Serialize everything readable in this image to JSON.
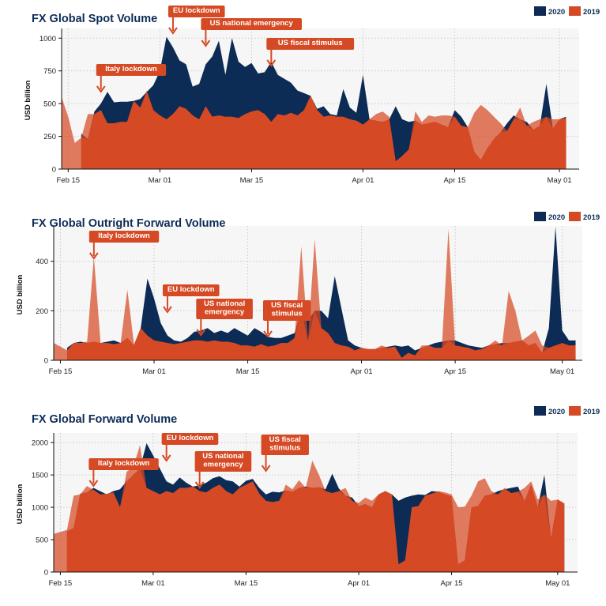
{
  "colors": {
    "series_2020": "#0c2b55",
    "series_2019": "#d54a24",
    "series_2019_faded": "#e0806a",
    "annotation": "#d54a24",
    "grid": "#c9c9c9",
    "background": "#f6f6f6"
  },
  "chart_data": [
    {
      "type": "area",
      "title": "FX Global Spot Volume",
      "ylabel": "USD billion",
      "xlabel": "",
      "ylim": [
        0,
        1050
      ],
      "yticks": [
        "0",
        "250",
        "500",
        "750",
        "1000"
      ],
      "ytick_values": [
        0,
        250,
        500,
        750,
        1000
      ],
      "xlim": [
        0,
        79
      ],
      "xticks": [
        "Feb 15",
        "Mar 01",
        "Mar 15",
        "Apr 01",
        "Apr 15",
        "May 01"
      ],
      "xtick_values": [
        1,
        15,
        29,
        46,
        60,
        76
      ],
      "grid": true,
      "legend": "top-right",
      "legend_entries": [
        "2020",
        "2019"
      ],
      "series": [
        {
          "name": "2020",
          "x": [
            3,
            4,
            5,
            6,
            7,
            8,
            9,
            10,
            11,
            12,
            13,
            14,
            15,
            16,
            17,
            18,
            19,
            20,
            21,
            22,
            23,
            24,
            25,
            26,
            27,
            28,
            29,
            30,
            31,
            32,
            33,
            34,
            35,
            36,
            37,
            38,
            39,
            40,
            41,
            42,
            43,
            44,
            45,
            46,
            47,
            48,
            49,
            50,
            51,
            52,
            53,
            54,
            55,
            56,
            57,
            58,
            59,
            60,
            61,
            62,
            63,
            64,
            65,
            66,
            67,
            68,
            69,
            70,
            71,
            72,
            73,
            74,
            75,
            76,
            77
          ],
          "values": [
            270,
            230,
            440,
            500,
            590,
            510,
            515,
            515,
            520,
            535,
            590,
            640,
            750,
            1010,
            930,
            830,
            800,
            630,
            650,
            800,
            860,
            980,
            720,
            1000,
            820,
            780,
            810,
            730,
            740,
            820,
            720,
            690,
            660,
            600,
            580,
            560,
            460,
            480,
            420,
            410,
            610,
            470,
            430,
            720,
            380,
            370,
            360,
            380,
            480,
            380,
            360,
            370,
            340,
            350,
            360,
            340,
            320,
            450,
            400,
            320,
            130,
            70,
            160,
            230,
            280,
            350,
            410,
            380,
            360,
            300,
            330,
            650,
            310,
            380,
            400
          ]
        },
        {
          "name": "2019",
          "x": [
            0,
            1,
            2,
            3,
            4,
            5,
            6,
            7,
            8,
            9,
            10,
            11,
            12,
            13,
            14,
            15,
            16,
            17,
            18,
            19,
            20,
            21,
            22,
            23,
            24,
            25,
            26,
            27,
            28,
            29,
            30,
            31,
            32,
            33,
            34,
            35,
            36,
            37,
            38,
            39,
            40,
            41,
            42,
            43,
            44,
            45,
            46,
            47,
            48,
            49,
            50,
            51,
            52,
            53,
            54,
            55,
            56,
            57,
            58,
            59,
            60,
            61,
            62,
            63,
            64,
            65,
            66,
            67,
            68,
            69,
            70,
            71,
            72,
            73,
            74,
            75,
            76,
            77
          ],
          "values": [
            550,
            400,
            200,
            240,
            420,
            420,
            450,
            350,
            350,
            360,
            360,
            520,
            470,
            600,
            450,
            410,
            380,
            420,
            480,
            460,
            410,
            380,
            480,
            400,
            410,
            400,
            400,
            390,
            420,
            440,
            450,
            420,
            360,
            420,
            410,
            430,
            410,
            450,
            560,
            450,
            400,
            410,
            400,
            400,
            380,
            370,
            340,
            380,
            420,
            440,
            400,
            60,
            100,
            150,
            440,
            360,
            410,
            400,
            410,
            410,
            400,
            330,
            320,
            430,
            490,
            450,
            400,
            350,
            290,
            380,
            470,
            330,
            360,
            380,
            400,
            380,
            380,
            390
          ]
        }
      ],
      "annotations": [
        {
          "text": "Italy lockdown",
          "x": 6
        },
        {
          "text": "EU lockdown",
          "x": 17
        },
        {
          "text": "US national emergency",
          "x": 22
        },
        {
          "text": "US fiscal stimulus",
          "x": 32
        }
      ]
    },
    {
      "type": "area",
      "title": "FX Global Outright Forward Volume",
      "ylabel": "USD billion",
      "xlabel": "",
      "ylim": [
        0,
        530
      ],
      "yticks": [
        "0",
        "200",
        "400"
      ],
      "ytick_values": [
        0,
        200,
        400
      ],
      "xlim": [
        0,
        79
      ],
      "xticks": [
        "Feb 15",
        "Mar 01",
        "Mar 15",
        "Apr 01",
        "Apr 15",
        "May 01"
      ],
      "xtick_values": [
        1,
        15,
        29,
        46,
        60,
        76
      ],
      "grid": true,
      "legend": "top-right",
      "legend_entries": [
        "2020",
        "2019"
      ],
      "series": [
        {
          "name": "2020",
          "x": [
            2,
            3,
            4,
            5,
            6,
            7,
            8,
            9,
            10,
            11,
            12,
            13,
            14,
            15,
            16,
            17,
            18,
            19,
            20,
            21,
            22,
            23,
            24,
            25,
            26,
            27,
            28,
            29,
            30,
            31,
            32,
            33,
            34,
            35,
            36,
            37,
            38,
            39,
            40,
            41,
            42,
            43,
            44,
            45,
            46,
            47,
            48,
            49,
            50,
            51,
            52,
            53,
            54,
            55,
            56,
            57,
            58,
            59,
            60,
            61,
            62,
            63,
            64,
            65,
            66,
            67,
            68,
            69,
            70,
            71,
            72,
            73,
            74,
            75,
            76,
            77,
            78
          ],
          "values": [
            50,
            70,
            75,
            70,
            75,
            70,
            75,
            80,
            70,
            90,
            60,
            130,
            330,
            250,
            150,
            100,
            80,
            75,
            90,
            115,
            120,
            130,
            110,
            120,
            110,
            130,
            115,
            100,
            130,
            115,
            95,
            90,
            90,
            100,
            110,
            200,
            160,
            200,
            200,
            170,
            340,
            210,
            80,
            60,
            50,
            45,
            45,
            50,
            55,
            60,
            55,
            60,
            40,
            50,
            60,
            70,
            75,
            80,
            80,
            70,
            60,
            55,
            50,
            60,
            65,
            70,
            70,
            75,
            80,
            60,
            70,
            30,
            130,
            540,
            120,
            80,
            80
          ]
        },
        {
          "name": "2019",
          "x": [
            0,
            1,
            2,
            3,
            4,
            5,
            6,
            7,
            8,
            9,
            10,
            11,
            12,
            13,
            14,
            15,
            16,
            17,
            18,
            19,
            20,
            21,
            22,
            23,
            24,
            25,
            26,
            27,
            28,
            29,
            30,
            31,
            32,
            33,
            34,
            35,
            36,
            37,
            38,
            39,
            40,
            41,
            42,
            43,
            44,
            45,
            46,
            47,
            48,
            49,
            50,
            51,
            52,
            53,
            54,
            55,
            56,
            57,
            58,
            59,
            60,
            61,
            62,
            63,
            64,
            65,
            66,
            67,
            68,
            69,
            70,
            71,
            72,
            73,
            74,
            75,
            76,
            77,
            78
          ],
          "values": [
            70,
            55,
            40,
            70,
            70,
            75,
            420,
            70,
            70,
            65,
            70,
            285,
            65,
            130,
            100,
            80,
            75,
            70,
            65,
            70,
            75,
            80,
            80,
            75,
            80,
            75,
            75,
            70,
            60,
            60,
            55,
            65,
            55,
            60,
            70,
            70,
            90,
            460,
            80,
            490,
            130,
            110,
            70,
            60,
            55,
            40,
            50,
            45,
            45,
            60,
            50,
            55,
            10,
            30,
            20,
            60,
            60,
            50,
            50,
            530,
            60,
            55,
            50,
            40,
            45,
            60,
            80,
            60,
            280,
            200,
            80,
            100,
            120,
            60,
            50,
            60,
            70,
            60,
            60
          ]
        }
      ],
      "annotations": [
        {
          "text": "Italy lockdown",
          "x": 6
        },
        {
          "text": "EU lockdown",
          "x": 17
        },
        {
          "text": "US national emergency",
          "x": 22
        },
        {
          "text": "US fiscal stimulus",
          "x": 32
        }
      ]
    },
    {
      "type": "area",
      "title": "FX Global Forward Volume",
      "ylabel": "USD billion",
      "xlabel": "",
      "ylim": [
        0,
        2100
      ],
      "yticks": [
        "0",
        "500",
        "1000",
        "1500",
        "2000"
      ],
      "ytick_values": [
        0,
        500,
        1000,
        1500,
        2000
      ],
      "xlim": [
        0,
        79
      ],
      "xticks": [
        "Feb 15",
        "Mar 01",
        "Mar 15",
        "Apr 01",
        "Apr 15",
        "May 01"
      ],
      "xtick_values": [
        1,
        15,
        29,
        46,
        60,
        76
      ],
      "grid": true,
      "legend": "top-right",
      "legend_entries": [
        "2020",
        "2019"
      ],
      "series": [
        {
          "name": "2020",
          "x": [
            2,
            3,
            4,
            5,
            6,
            7,
            8,
            9,
            10,
            11,
            12,
            13,
            14,
            15,
            16,
            17,
            18,
            19,
            20,
            21,
            22,
            23,
            24,
            25,
            26,
            27,
            28,
            29,
            30,
            31,
            32,
            33,
            34,
            35,
            36,
            37,
            38,
            39,
            40,
            41,
            42,
            43,
            44,
            45,
            46,
            47,
            48,
            49,
            50,
            51,
            52,
            53,
            54,
            55,
            56,
            57,
            58,
            59,
            60,
            61,
            62,
            63,
            64,
            65,
            66,
            67,
            68,
            69,
            70,
            71,
            72,
            73,
            74,
            75,
            76,
            77
          ],
          "values": [
            630,
            680,
            1210,
            1230,
            1300,
            1250,
            1200,
            1250,
            1280,
            1400,
            1500,
            1600,
            1990,
            1800,
            1600,
            1400,
            1350,
            1460,
            1380,
            1320,
            1340,
            1380,
            1450,
            1480,
            1420,
            1400,
            1320,
            1410,
            1440,
            1300,
            1200,
            1240,
            1230,
            1260,
            1240,
            1300,
            1320,
            1300,
            1310,
            1280,
            1520,
            1290,
            1180,
            1150,
            1020,
            1050,
            1000,
            1200,
            1250,
            1200,
            1100,
            1150,
            1180,
            1200,
            1190,
            1250,
            1240,
            1200,
            1170,
            120,
            180,
            1000,
            1020,
            1180,
            1200,
            1250,
            1280,
            1300,
            1320,
            1100,
            1350,
            1000,
            1500,
            520,
            1120,
            1060
          ]
        },
        {
          "name": "2019",
          "x": [
            0,
            1,
            2,
            3,
            4,
            5,
            6,
            7,
            8,
            9,
            10,
            11,
            12,
            13,
            14,
            15,
            16,
            17,
            18,
            19,
            20,
            21,
            22,
            23,
            24,
            25,
            26,
            27,
            28,
            29,
            30,
            31,
            32,
            33,
            34,
            35,
            36,
            37,
            38,
            39,
            40,
            41,
            42,
            43,
            44,
            45,
            46,
            47,
            48,
            49,
            50,
            51,
            52,
            53,
            54,
            55,
            56,
            57,
            58,
            59,
            60,
            61,
            62,
            63,
            64,
            65,
            66,
            67,
            68,
            69,
            70,
            71,
            72,
            73,
            74,
            75,
            76,
            77
          ],
          "values": [
            590,
            620,
            650,
            1180,
            1200,
            1330,
            1270,
            1200,
            1210,
            1230,
            1000,
            1550,
            1620,
            1960,
            1300,
            1250,
            1200,
            1250,
            1220,
            1300,
            1300,
            1320,
            1250,
            1230,
            1300,
            1350,
            1250,
            1200,
            1300,
            1350,
            1400,
            1210,
            1100,
            1080,
            1100,
            1350,
            1280,
            1420,
            1300,
            1720,
            1500,
            1250,
            1220,
            1250,
            1300,
            1100,
            1070,
            1150,
            1100,
            1200,
            1250,
            1200,
            120,
            180,
            1000,
            1020,
            1180,
            1210,
            1250,
            1230,
            1200,
            1000,
            1010,
            1180,
            1400,
            1450,
            1250,
            1200,
            1300,
            1220,
            1240,
            1300,
            1400,
            1120,
            1200,
            1100,
            1120,
            1060
          ]
        }
      ],
      "annotations": [
        {
          "text": "Italy lockdown",
          "x": 6
        },
        {
          "text": "EU lockdown",
          "x": 17
        },
        {
          "text": "US national emergency",
          "x": 22
        },
        {
          "text": "US fiscal stimulus",
          "x": 32
        }
      ]
    }
  ]
}
